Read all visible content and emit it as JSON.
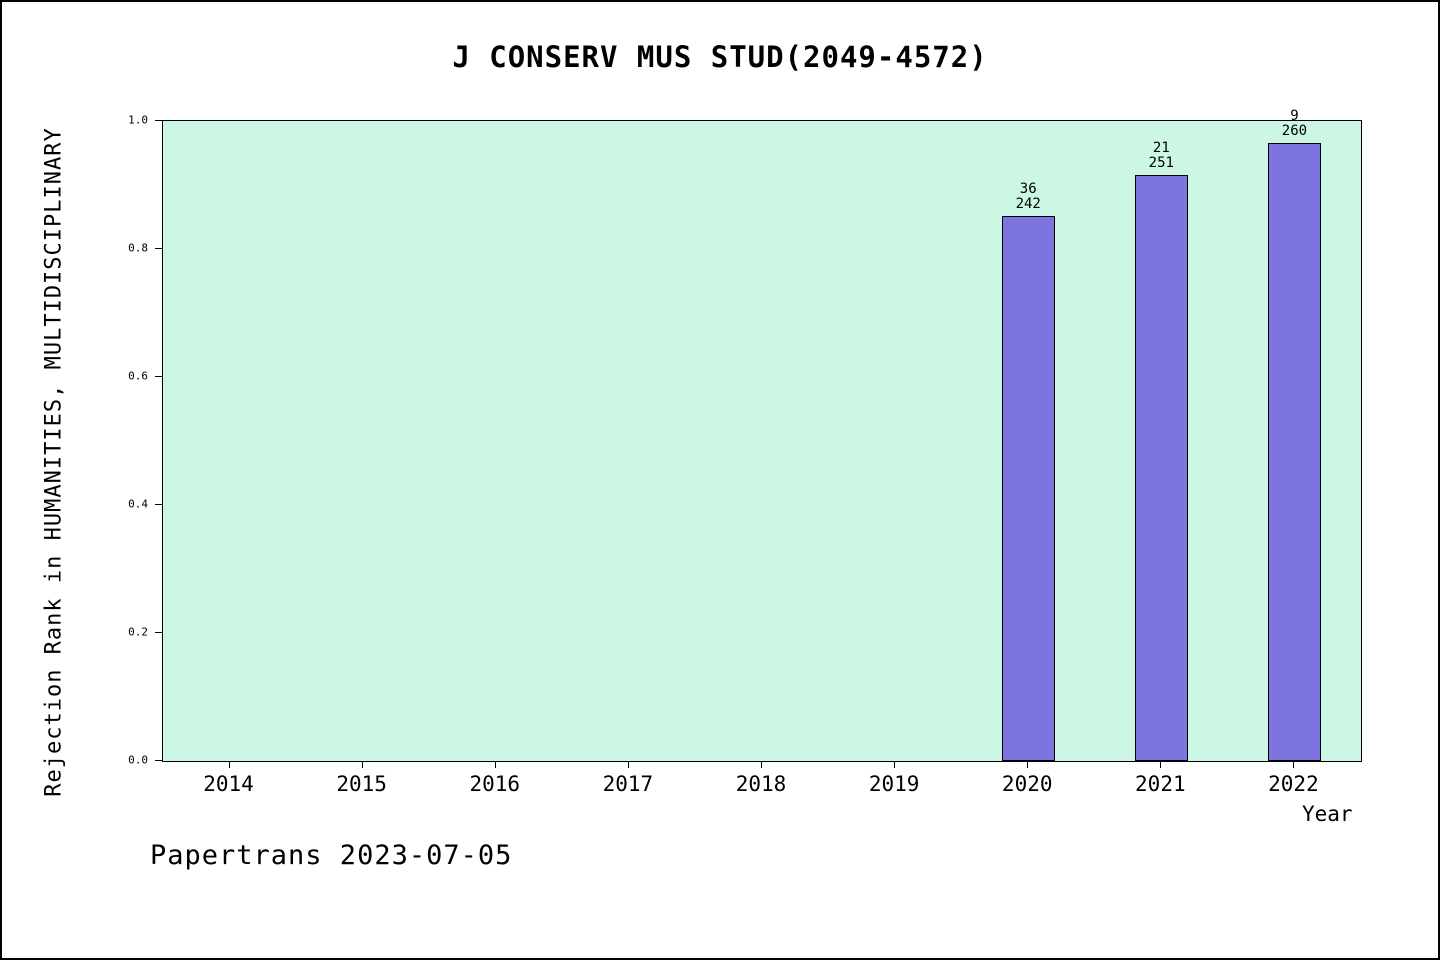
{
  "footer": "Papertrans 2023-07-05",
  "chart_data": {
    "type": "bar",
    "title": "J CONSERV MUS STUD(2049-4572)",
    "xlabel": "Year",
    "ylabel": "Rejection Rank in HUMANITIES, MULTIDISCIPLINARY",
    "categories": [
      "2014",
      "2015",
      "2016",
      "2017",
      "2018",
      "2019",
      "2020",
      "2021",
      "2022"
    ],
    "values": [
      null,
      null,
      null,
      null,
      null,
      null,
      0.851,
      0.916,
      0.965
    ],
    "bar_labels": [
      null,
      null,
      null,
      null,
      null,
      null,
      [
        "36",
        "242"
      ],
      [
        "21",
        "251"
      ],
      [
        "9",
        "260"
      ]
    ],
    "ylim": [
      0,
      1.0
    ],
    "yticks": [
      "0.0",
      "0.2",
      "0.4",
      "0.6",
      "0.8",
      "1.0"
    ],
    "grid": false,
    "legend_position": "none",
    "plot_bg_color": "#cbf7e4",
    "bar_color": "#7e74df",
    "bar_width_fraction": 0.4
  }
}
